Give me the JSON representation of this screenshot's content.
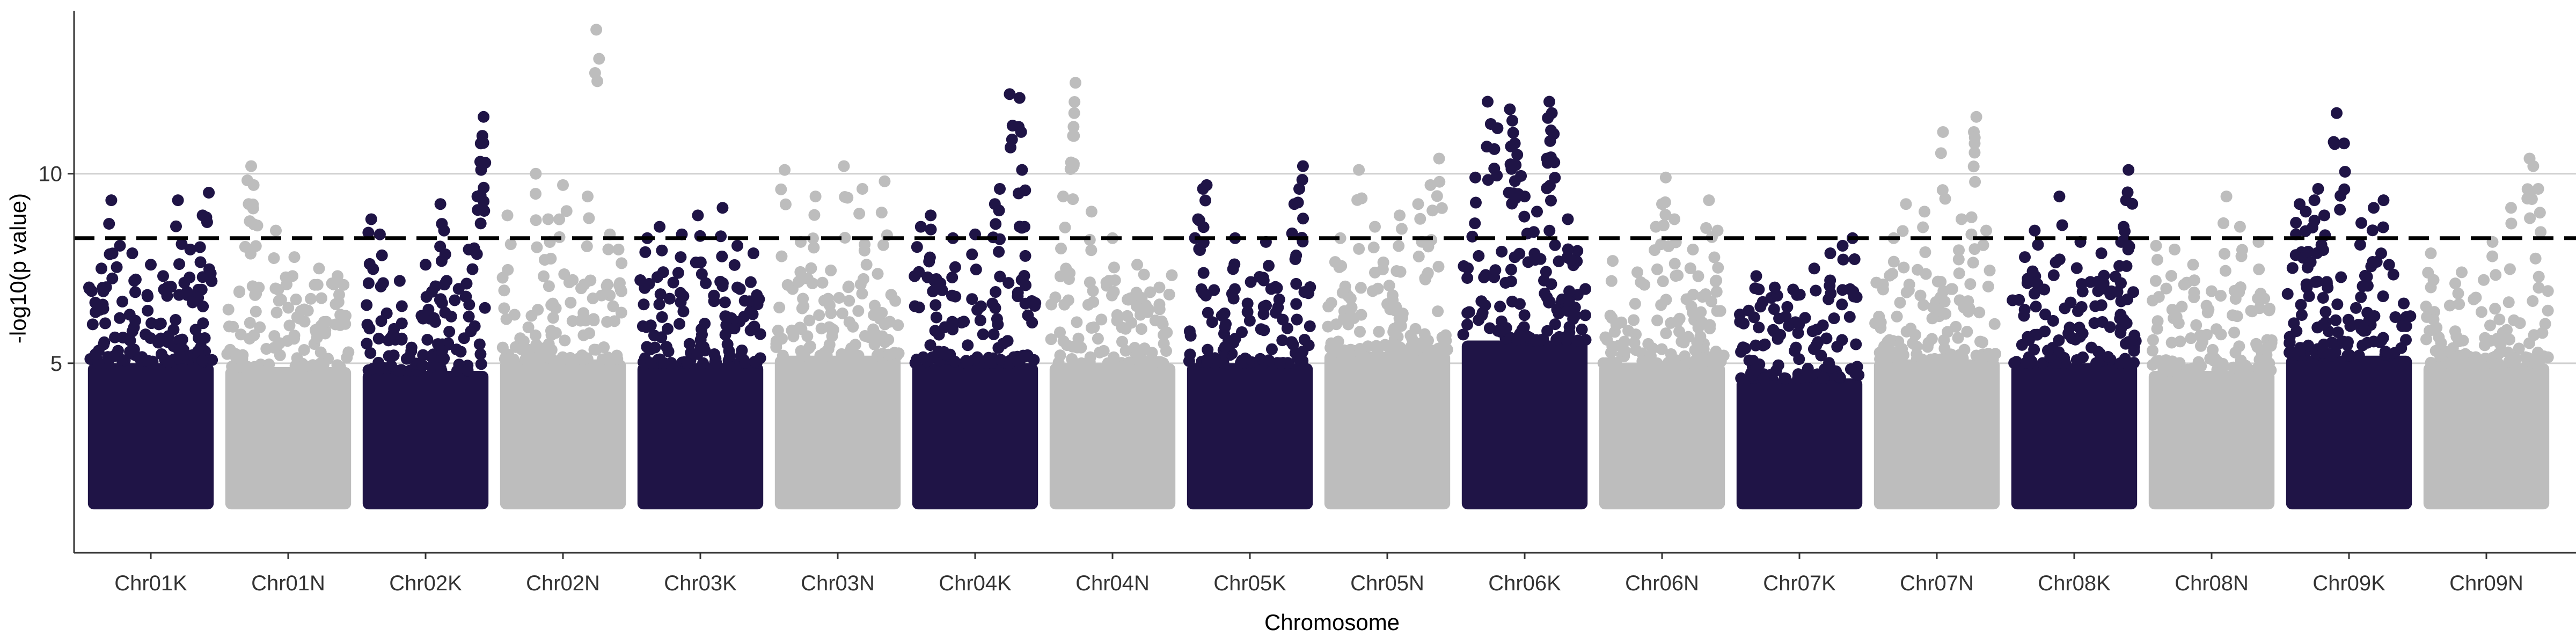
{
  "chart_data": {
    "type": "scatter",
    "title": "",
    "xlabel": "Chromosome",
    "ylabel": "-log10(p value)",
    "ylim": [
      0,
      14.3
    ],
    "y_ticks": [
      5,
      10
    ],
    "grid": "horizontal major",
    "legend": "none",
    "threshold": 8.3,
    "threshold_style": "dashed black",
    "colors": {
      "dark": "#1f1446",
      "light": "#bdbdbd",
      "grid": "#d0d0d0",
      "axis": "#333333"
    },
    "categories": [
      "Chr01K",
      "Chr01N",
      "Chr02K",
      "Chr02N",
      "Chr03K",
      "Chr03N",
      "Chr04K",
      "Chr04N",
      "Chr05K",
      "Chr05N",
      "Chr06K",
      "Chr06N",
      "Chr07K",
      "Chr07N",
      "Chr08K",
      "Chr08N",
      "Chr09K",
      "Chr09N"
    ],
    "series": [
      {
        "chromosome": "Chr01K",
        "color": "dark",
        "floor": 1.3,
        "dense_top": 5.0,
        "peak_points": [
          [
            0.05,
            6.6
          ],
          [
            0.1,
            7.5
          ],
          [
            0.18,
            9.3
          ],
          [
            0.25,
            8.1
          ],
          [
            0.35,
            7.9
          ],
          [
            0.5,
            7.6
          ],
          [
            0.6,
            7.3
          ],
          [
            0.72,
            9.3
          ],
          [
            0.82,
            8.0
          ],
          [
            0.92,
            8.9
          ],
          [
            0.97,
            9.5
          ]
        ]
      },
      {
        "chromosome": "Chr01N",
        "color": "light",
        "floor": 1.3,
        "dense_top": 4.9,
        "peak_points": [
          [
            0.2,
            10.2
          ],
          [
            0.22,
            9.7
          ],
          [
            0.18,
            9.2
          ],
          [
            0.4,
            8.5
          ],
          [
            0.55,
            7.8
          ],
          [
            0.75,
            7.5
          ],
          [
            0.9,
            7.3
          ]
        ]
      },
      {
        "chromosome": "Chr02K",
        "color": "dark",
        "floor": 1.3,
        "dense_top": 4.8,
        "peak_points": [
          [
            0.06,
            8.8
          ],
          [
            0.13,
            8.4
          ],
          [
            0.5,
            7.6
          ],
          [
            0.62,
            9.2
          ],
          [
            0.65,
            8.5
          ],
          [
            0.85,
            8.0
          ],
          [
            0.92,
            9.4
          ],
          [
            0.95,
            10.1
          ],
          [
            0.96,
            11.0
          ],
          [
            0.97,
            11.5
          ]
        ]
      },
      {
        "chromosome": "Chr02N",
        "color": "light",
        "floor": 1.3,
        "dense_top": 5.1,
        "peak_points": [
          [
            0.05,
            8.9
          ],
          [
            0.28,
            10.0
          ],
          [
            0.38,
            8.8
          ],
          [
            0.5,
            9.7
          ],
          [
            0.7,
            9.4
          ],
          [
            0.77,
            13.8
          ],
          [
            0.88,
            8.4
          ],
          [
            0.95,
            8.0
          ]
        ]
      },
      {
        "chromosome": "Chr03K",
        "color": "dark",
        "floor": 1.3,
        "dense_top": 5.0,
        "peak_points": [
          [
            0.07,
            8.3
          ],
          [
            0.17,
            8.6
          ],
          [
            0.35,
            8.4
          ],
          [
            0.48,
            8.9
          ],
          [
            0.68,
            9.1
          ],
          [
            0.8,
            8.1
          ],
          [
            0.93,
            7.9
          ]
        ]
      },
      {
        "chromosome": "Chr03N",
        "color": "light",
        "floor": 1.3,
        "dense_top": 5.2,
        "peak_points": [
          [
            0.07,
            10.1
          ],
          [
            0.2,
            8.2
          ],
          [
            0.32,
            9.4
          ],
          [
            0.55,
            10.2
          ],
          [
            0.7,
            9.6
          ],
          [
            0.88,
            9.8
          ]
        ]
      },
      {
        "chromosome": "Chr04K",
        "color": "dark",
        "floor": 1.3,
        "dense_top": 5.0,
        "peak_points": [
          [
            0.06,
            8.6
          ],
          [
            0.14,
            8.9
          ],
          [
            0.32,
            8.3
          ],
          [
            0.5,
            8.4
          ],
          [
            0.66,
            9.2
          ],
          [
            0.7,
            9.6
          ],
          [
            0.78,
            12.1
          ],
          [
            0.86,
            12.0
          ],
          [
            0.88,
            10.1
          ],
          [
            0.9,
            8.6
          ]
        ]
      },
      {
        "chromosome": "Chr04N",
        "color": "light",
        "floor": 1.3,
        "dense_top": 5.0,
        "peak_points": [
          [
            0.1,
            9.4
          ],
          [
            0.18,
            11.0
          ],
          [
            0.19,
            11.6
          ],
          [
            0.2,
            12.4
          ],
          [
            0.33,
            9.0
          ],
          [
            0.5,
            8.3
          ],
          [
            0.7,
            7.6
          ],
          [
            0.88,
            7.0
          ]
        ]
      },
      {
        "chromosome": "Chr05K",
        "color": "dark",
        "floor": 1.3,
        "dense_top": 5.0,
        "peak_points": [
          [
            0.08,
            8.8
          ],
          [
            0.12,
            9.6
          ],
          [
            0.15,
            9.7
          ],
          [
            0.38,
            8.3
          ],
          [
            0.63,
            8.2
          ],
          [
            0.86,
            9.2
          ],
          [
            0.9,
            9.6
          ],
          [
            0.93,
            10.2
          ]
        ]
      },
      {
        "chromosome": "Chr05N",
        "color": "light",
        "floor": 1.3,
        "dense_top": 5.3,
        "peak_points": [
          [
            0.12,
            8.3
          ],
          [
            0.27,
            10.1
          ],
          [
            0.4,
            8.6
          ],
          [
            0.6,
            8.9
          ],
          [
            0.75,
            9.2
          ],
          [
            0.85,
            9.7
          ],
          [
            0.92,
            10.4
          ]
        ]
      },
      {
        "chromosome": "Chr06K",
        "color": "dark",
        "floor": 1.3,
        "dense_top": 5.6,
        "peak_points": [
          [
            0.1,
            9.9
          ],
          [
            0.2,
            11.9
          ],
          [
            0.28,
            11.2
          ],
          [
            0.38,
            11.7
          ],
          [
            0.4,
            11.4
          ],
          [
            0.42,
            10.8
          ],
          [
            0.44,
            10.5
          ],
          [
            0.5,
            9.4
          ],
          [
            0.6,
            9.0
          ],
          [
            0.68,
            10.4
          ],
          [
            0.7,
            11.9
          ],
          [
            0.72,
            11.6
          ],
          [
            0.74,
            10.3
          ],
          [
            0.85,
            8.8
          ]
        ]
      },
      {
        "chromosome": "Chr06N",
        "color": "light",
        "floor": 1.3,
        "dense_top": 5.0,
        "peak_points": [
          [
            0.1,
            7.7
          ],
          [
            0.3,
            7.4
          ],
          [
            0.45,
            8.6
          ],
          [
            0.5,
            9.2
          ],
          [
            0.53,
            9.9
          ],
          [
            0.6,
            8.8
          ],
          [
            0.75,
            8.0
          ],
          [
            0.88,
            9.3
          ],
          [
            0.95,
            8.5
          ]
        ]
      },
      {
        "chromosome": "Chr07K",
        "color": "dark",
        "floor": 1.3,
        "dense_top": 4.6,
        "peak_points": [
          [
            0.15,
            7.3
          ],
          [
            0.3,
            7.0
          ],
          [
            0.48,
            6.8
          ],
          [
            0.62,
            7.5
          ],
          [
            0.75,
            7.9
          ],
          [
            0.85,
            8.1
          ],
          [
            0.93,
            8.3
          ]
        ]
      },
      {
        "chromosome": "Chr07N",
        "color": "light",
        "floor": 1.3,
        "dense_top": 5.1,
        "peak_points": [
          [
            0.15,
            8.3
          ],
          [
            0.25,
            9.2
          ],
          [
            0.4,
            9.0
          ],
          [
            0.55,
            11.1
          ],
          [
            0.7,
            8.8
          ],
          [
            0.78,
            8.4
          ],
          [
            0.8,
            11.1
          ],
          [
            0.82,
            11.5
          ],
          [
            0.9,
            8.5
          ]
        ]
      },
      {
        "chromosome": "Chr08K",
        "color": "dark",
        "floor": 1.3,
        "dense_top": 5.0,
        "peak_points": [
          [
            0.1,
            7.8
          ],
          [
            0.18,
            8.5
          ],
          [
            0.38,
            9.4
          ],
          [
            0.55,
            8.2
          ],
          [
            0.72,
            7.9
          ],
          [
            0.88,
            8.2
          ],
          [
            0.9,
            8.6
          ],
          [
            0.92,
            9.3
          ],
          [
            0.94,
            10.1
          ]
        ]
      },
      {
        "chromosome": "Chr08N",
        "color": "light",
        "floor": 1.3,
        "dense_top": 4.8,
        "peak_points": [
          [
            0.05,
            8.1
          ],
          [
            0.2,
            8.0
          ],
          [
            0.35,
            7.6
          ],
          [
            0.5,
            6.9
          ],
          [
            0.62,
            9.4
          ],
          [
            0.73,
            8.6
          ],
          [
            0.88,
            8.2
          ]
        ]
      },
      {
        "chromosome": "Chr09K",
        "color": "dark",
        "floor": 1.3,
        "dense_top": 5.2,
        "peak_points": [
          [
            0.07,
            8.4
          ],
          [
            0.1,
            9.2
          ],
          [
            0.15,
            9.0
          ],
          [
            0.22,
            9.3
          ],
          [
            0.25,
            9.6
          ],
          [
            0.3,
            8.9
          ],
          [
            0.4,
            11.6
          ],
          [
            0.46,
            10.8
          ],
          [
            0.6,
            8.7
          ],
          [
            0.7,
            9.1
          ],
          [
            0.78,
            9.3
          ]
        ]
      },
      {
        "chromosome": "Chr09N",
        "color": "light",
        "floor": 1.3,
        "dense_top": 5.0,
        "peak_points": [
          [
            0.05,
            7.9
          ],
          [
            0.3,
            7.4
          ],
          [
            0.55,
            8.2
          ],
          [
            0.7,
            9.1
          ],
          [
            0.85,
            10.4
          ],
          [
            0.88,
            10.2
          ],
          [
            0.92,
            9.6
          ]
        ]
      }
    ]
  }
}
